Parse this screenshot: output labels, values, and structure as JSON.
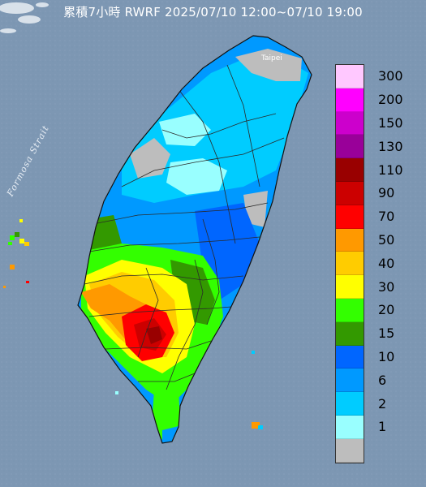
{
  "title": "累積7小時 RWRF 2025/07/10 12:00~07/10 19:00",
  "map_labels": {
    "strait": "Formosa Strait",
    "city": "Taipei"
  },
  "colors": {
    "sea": "#7d97b3",
    "land_outline": "#1a1a1a",
    "county_lines": "#2a2a2a"
  },
  "legend": [
    {
      "label": "300",
      "color": "#ffc8ff"
    },
    {
      "label": "200",
      "color": "#ff00ff"
    },
    {
      "label": "150",
      "color": "#cc00cc"
    },
    {
      "label": "130",
      "color": "#990099"
    },
    {
      "label": "110",
      "color": "#990000"
    },
    {
      "label": "90",
      "color": "#cc0000"
    },
    {
      "label": "70",
      "color": "#ff0000"
    },
    {
      "label": "50",
      "color": "#ff9900"
    },
    {
      "label": "40",
      "color": "#ffcc00"
    },
    {
      "label": "30",
      "color": "#ffff00"
    },
    {
      "label": "20",
      "color": "#33ff00"
    },
    {
      "label": "15",
      "color": "#339900"
    },
    {
      "label": "10",
      "color": "#0066ff"
    },
    {
      "label": "6",
      "color": "#0099ff"
    },
    {
      "label": "2",
      "color": "#00ccff"
    },
    {
      "label": "1",
      "color": "#99ffff"
    },
    {
      "label": "",
      "color": "#bdbdbd"
    }
  ]
}
